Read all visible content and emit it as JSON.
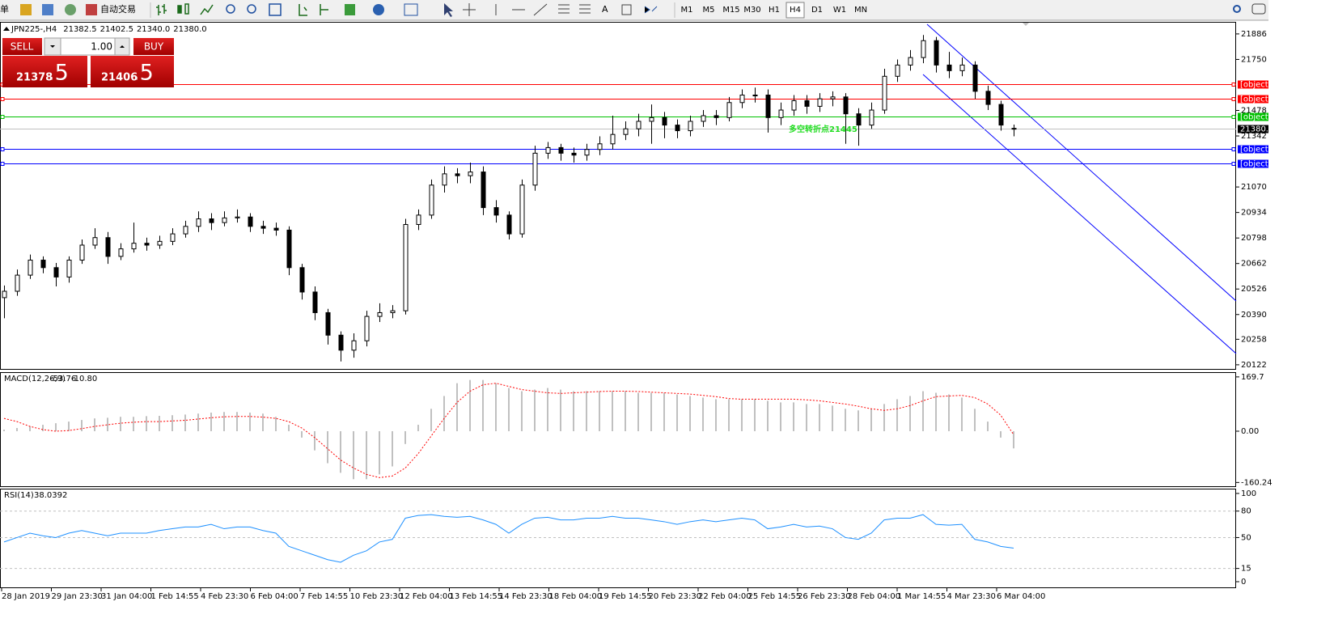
{
  "toolbar": {
    "menu": "单",
    "autotrade": "自动交易",
    "text_tool": "A",
    "timeframes": [
      "M1",
      "M5",
      "M15",
      "M30",
      "H1",
      "H4",
      "D1",
      "W1",
      "MN"
    ],
    "active_timeframe": "H4"
  },
  "trade_panel": {
    "sell": "SELL",
    "buy": "BUY",
    "lots": "1.00",
    "sell_price": "21378",
    "sell_fraction": ".5",
    "buy_price": "21406",
    "buy_fraction": ".5"
  },
  "x_labels": [
    "28 Jan 2019",
    "29 Jan 23:30",
    "31 Jan 04:00",
    "1 Feb 14:55",
    "4 Feb 23:30",
    "6 Feb 04:00",
    "7 Feb 14:55",
    "10 Feb 23:30",
    "12 Feb 04:00",
    "13 Feb 14:55",
    "14 Feb 23:30",
    "18 Feb 04:00",
    "19 Feb 14:55",
    "20 Feb 23:30",
    "22 Feb 04:00",
    "25 Feb 14:55",
    "26 Feb 23:30",
    "28 Feb 04:00",
    "1 Mar 14:55",
    "4 Mar 23:30",
    "6 Mar 04:00"
  ],
  "chart_data": [
    {
      "type": "candlestick",
      "title": "JPN225-,H4",
      "header_values": [
        "21382.5",
        "21402.5",
        "21340.0",
        "21380.0"
      ],
      "open": [
        20480,
        20514,
        20600,
        20680,
        20640,
        20590,
        20680,
        20760,
        20800,
        20700,
        20740,
        20770,
        20760,
        20780,
        20820,
        20860,
        20900,
        20880,
        20905,
        20910,
        20860,
        20850,
        20840,
        20640,
        20510,
        20400,
        20280,
        20200,
        20250,
        20380,
        20400,
        20410,
        20870,
        20920,
        21080,
        21140,
        21130,
        21150,
        20960,
        20920,
        20820,
        21080,
        21250,
        21280,
        21250,
        21240,
        21270,
        21300,
        21350,
        21380,
        21420,
        21440,
        21400,
        21370,
        21420,
        21450,
        21440,
        21520,
        21560,
        21560,
        21440,
        21480,
        21530,
        21500,
        21540,
        21550,
        21460,
        21400,
        21480,
        21660,
        21720,
        21760,
        21850,
        21720,
        21690,
        21720,
        21580,
        21510,
        21382.5
      ],
      "high": [
        20545,
        20630,
        20710,
        20700,
        20665,
        20700,
        20790,
        20850,
        20830,
        20770,
        20880,
        20800,
        20810,
        20850,
        20890,
        20940,
        20930,
        20940,
        20950,
        20930,
        20890,
        20880,
        20860,
        20660,
        20540,
        20420,
        20300,
        20290,
        20410,
        20450,
        20440,
        20900,
        20950,
        21110,
        21180,
        21170,
        21200,
        21180,
        21000,
        20940,
        21110,
        21290,
        21310,
        21300,
        21280,
        21300,
        21340,
        21450,
        21420,
        21460,
        21510,
        21470,
        21430,
        21450,
        21480,
        21480,
        21550,
        21590,
        21600,
        21590,
        21520,
        21560,
        21560,
        21570,
        21580,
        21570,
        21490,
        21520,
        21700,
        21750,
        21800,
        21880,
        21870,
        21790,
        21760,
        21740,
        21610,
        21530,
        21402.5
      ],
      "low": [
        20370,
        20490,
        20580,
        20610,
        20540,
        20560,
        20660,
        20740,
        20660,
        20680,
        20720,
        20730,
        20740,
        20760,
        20800,
        20830,
        20840,
        20860,
        20880,
        20830,
        20820,
        20810,
        20600,
        20470,
        20360,
        20230,
        20140,
        20160,
        20220,
        20350,
        20370,
        20390,
        20840,
        20900,
        21040,
        21090,
        21090,
        20920,
        20880,
        20790,
        20800,
        21050,
        21220,
        21210,
        21200,
        21210,
        21240,
        21270,
        21320,
        21340,
        21300,
        21330,
        21330,
        21340,
        21390,
        21400,
        21420,
        21490,
        21520,
        21360,
        21400,
        21450,
        21460,
        21470,
        21500,
        21300,
        21290,
        21380,
        21460,
        21630,
        21690,
        21730,
        21680,
        21650,
        21660,
        21540,
        21480,
        21370,
        21340
      ],
      "close": [
        20514,
        20600,
        20680,
        20640,
        20590,
        20680,
        20760,
        20800,
        20700,
        20740,
        20770,
        20760,
        20780,
        20820,
        20860,
        20900,
        20880,
        20905,
        20910,
        20860,
        20850,
        20840,
        20640,
        20510,
        20400,
        20280,
        20200,
        20250,
        20380,
        20400,
        20410,
        20870,
        20920,
        21080,
        21140,
        21130,
        21150,
        20960,
        20920,
        20820,
        21080,
        21250,
        21280,
        21250,
        21240,
        21270,
        21300,
        21350,
        21380,
        21420,
        21440,
        21400,
        21370,
        21420,
        21450,
        21440,
        21520,
        21560,
        21560,
        21440,
        21480,
        21530,
        21500,
        21540,
        21550,
        21460,
        21400,
        21480,
        21660,
        21720,
        21760,
        21850,
        21720,
        21690,
        21720,
        21580,
        21510,
        21400,
        21380
      ],
      "up_color": "#ffffff",
      "down_color": "#000000",
      "ylim": [
        20100,
        21946
      ],
      "yticks": [
        21886,
        21750,
        21478,
        21342,
        21070,
        20934,
        20798,
        20662,
        20526,
        20390,
        20258,
        20122
      ],
      "levels": [
        {
          "value": 21617.6,
          "color": "#ff0000"
        },
        {
          "value": 21539.5,
          "color": "#ff0000"
        },
        {
          "value": 21445.1,
          "color": "#00c000"
        },
        {
          "value": 21380,
          "label": "21380.0",
          "color": "#c0c0c0",
          "label_color": "#000000"
        },
        {
          "value": 21272.5,
          "color": "#0000ff"
        },
        {
          "value": 21194.5,
          "color": "#0000ff"
        }
      ],
      "annotation": "多空转折点21445",
      "annotation_color": "#22dd22"
    },
    {
      "type": "macd",
      "title": "MACD(12,26,9)",
      "signal_label": "-10.80",
      "color": "#c0c0c0",
      "signal_color": "#ff0000",
      "values": [
        5,
        10,
        15,
        20,
        25,
        30,
        35,
        40,
        42,
        45,
        45,
        47,
        48,
        50,
        52,
        55,
        58,
        60,
        60,
        58,
        55,
        45,
        20,
        -20,
        -60,
        -100,
        -130,
        -150,
        -150,
        -135,
        -110,
        -40,
        20,
        70,
        110,
        150,
        160,
        160,
        150,
        135,
        125,
        130,
        135,
        130,
        125,
        125,
        125,
        125,
        125,
        120,
        120,
        120,
        115,
        110,
        105,
        100,
        100,
        100,
        100,
        95,
        90,
        90,
        85,
        85,
        80,
        70,
        65,
        70,
        85,
        100,
        110,
        125,
        120,
        115,
        105,
        70,
        30,
        -20,
        -53.76
      ],
      "signal": [
        40,
        30,
        15,
        5,
        0,
        2,
        8,
        15,
        20,
        25,
        28,
        30,
        30,
        32,
        34,
        38,
        42,
        45,
        46,
        46,
        44,
        40,
        30,
        10,
        -20,
        -55,
        -90,
        -115,
        -135,
        -145,
        -140,
        -115,
        -70,
        -15,
        40,
        90,
        125,
        145,
        150,
        140,
        130,
        125,
        120,
        118,
        120,
        122,
        124,
        125,
        125,
        124,
        122,
        120,
        118,
        116,
        112,
        108,
        102,
        100,
        100,
        100,
        100,
        100,
        98,
        95,
        90,
        85,
        78,
        70,
        65,
        70,
        80,
        95,
        108,
        110,
        112,
        105,
        85,
        50,
        -10.8
      ],
      "ylim": [
        -172,
        182
      ],
      "yticks": [
        169.7,
        {
          "value": 0,
          "label": "0.00"
        },
        -160.24
      ]
    },
    {
      "type": "line",
      "title": "RSI(14)",
      "color": "#1e90ff",
      "values": [
        45,
        50,
        55,
        52,
        50,
        55,
        58,
        55,
        52,
        55,
        55,
        55,
        58,
        60,
        62,
        62,
        65,
        60,
        62,
        62,
        58,
        55,
        40,
        35,
        30,
        25,
        22,
        30,
        35,
        45,
        48,
        72,
        75,
        76,
        74,
        73,
        74,
        70,
        65,
        55,
        65,
        72,
        73,
        70,
        70,
        72,
        72,
        74,
        72,
        72,
        70,
        68,
        65,
        68,
        70,
        68,
        70,
        72,
        70,
        60,
        62,
        65,
        62,
        63,
        60,
        50,
        48,
        55,
        70,
        72,
        72,
        76,
        65,
        64,
        65,
        48,
        45,
        40,
        38.0392
      ],
      "ylim": [
        -5.5,
        104.5
      ],
      "yticks": [
        100,
        80,
        50,
        15,
        0
      ],
      "levels": [
        80,
        50,
        15
      ]
    }
  ]
}
